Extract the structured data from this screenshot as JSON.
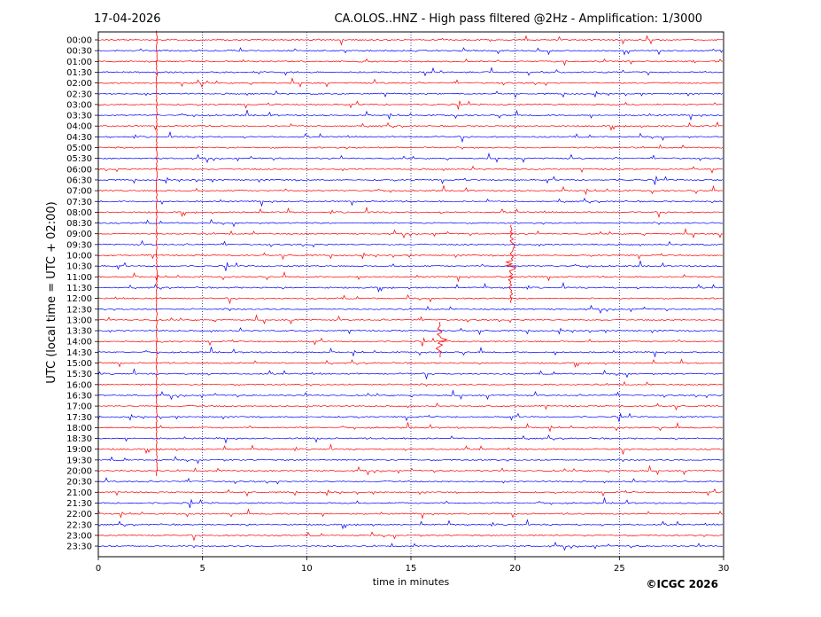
{
  "header": {
    "date": "17-04-2026",
    "title": "CA.OLOS..HNZ - High pass filtered @2Hz - Amplification: 1/3000"
  },
  "footer": {
    "copyright": "©ICGC 2026"
  },
  "colors": {
    "even_row": "#ff0000",
    "odd_row": "#0000ff",
    "grid": "#000080",
    "background": "#ffffff"
  },
  "chart_data": {
    "type": "line",
    "xlabel": "time in minutes",
    "ylabel": "UTC (local time = UTC + 02:00)",
    "xlim": [
      0,
      30
    ],
    "x_ticks": [
      0,
      5,
      10,
      15,
      20,
      25,
      30
    ],
    "y_ticks": [
      "00:00",
      "00:30",
      "01:00",
      "01:30",
      "02:00",
      "02:30",
      "03:00",
      "03:30",
      "04:00",
      "04:30",
      "05:00",
      "05:30",
      "06:00",
      "06:30",
      "07:00",
      "07:30",
      "08:00",
      "08:30",
      "09:00",
      "09:30",
      "10:00",
      "10:30",
      "11:00",
      "11:30",
      "12:00",
      "12:30",
      "13:00",
      "13:30",
      "14:00",
      "14:30",
      "15:00",
      "15:30",
      "16:00",
      "16:30",
      "17:00",
      "17:30",
      "18:00",
      "18:30",
      "19:00",
      "19:30",
      "20:00",
      "20:30",
      "21:00",
      "21:30",
      "22:00",
      "22:30",
      "23:00",
      "23:30"
    ],
    "vertical_grid_minutes": [
      5,
      10,
      15,
      20,
      25
    ],
    "grid_style": "dotted",
    "row_color_pattern": "alternating red / blue",
    "notable_events": [
      {
        "label": "vertical spike trace",
        "minute": 2.8,
        "from_row": "00:00",
        "to_row": "20:00"
      },
      {
        "label": "large event",
        "minute": 19.8,
        "from_row": "09:00",
        "to_row": "12:00"
      },
      {
        "label": "burst",
        "minute": 16.4,
        "from_row": "13:30",
        "to_row": "14:30"
      }
    ]
  }
}
